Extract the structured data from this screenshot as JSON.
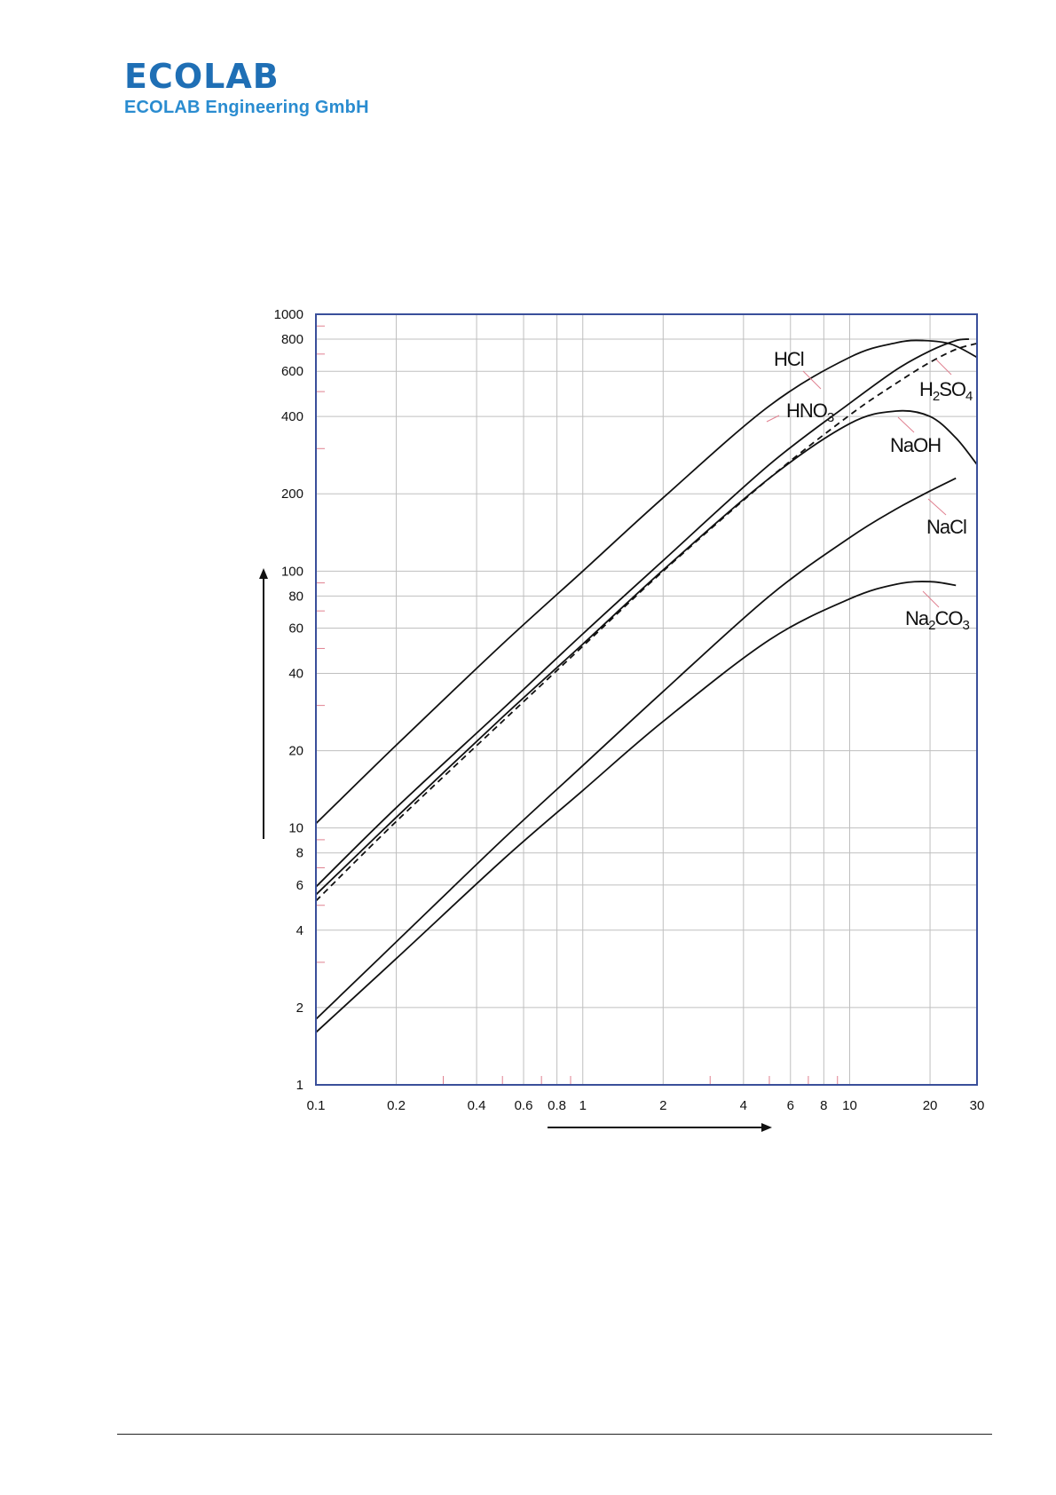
{
  "header": {
    "logo_text": "ECOLAB",
    "company": "ECOLAB Engineering GmbH"
  },
  "colors": {
    "brand": "#1f6fb5",
    "axis_frame": "#3a4f9a",
    "grid": "#bfbfbf",
    "minor_tick": "#e08090",
    "curve": "#111111"
  },
  "chart_data": {
    "type": "line",
    "xscale": "log",
    "yscale": "log",
    "xlim": [
      0.1,
      30
    ],
    "ylim": [
      1,
      1000
    ],
    "grid": true,
    "x_ticks": [
      0.1,
      0.2,
      0.4,
      0.6,
      0.8,
      1,
      2,
      4,
      6,
      8,
      10,
      20,
      30
    ],
    "y_ticks": [
      1,
      2,
      4,
      6,
      8,
      10,
      20,
      40,
      60,
      80,
      100,
      200,
      400,
      600,
      800,
      1000
    ],
    "series": [
      {
        "name": "HCl",
        "style": "solid",
        "x": [
          0.1,
          0.2,
          0.5,
          1,
          2,
          5,
          10,
          15,
          19,
          24,
          30
        ],
        "y": [
          10.4,
          21,
          52,
          100,
          193,
          440,
          680,
          775,
          790,
          765,
          680
        ]
      },
      {
        "name": "HNO3",
        "style": "solid",
        "x": [
          0.1,
          0.2,
          0.5,
          1,
          2,
          5,
          10,
          15,
          20,
          25,
          28
        ],
        "y": [
          5.9,
          12,
          29,
          57,
          110,
          260,
          450,
          610,
          720,
          790,
          800
        ]
      },
      {
        "name": "H2SO4",
        "style": "dashed",
        "x": [
          0.1,
          0.2,
          0.5,
          1,
          2,
          5,
          10,
          15,
          20,
          25,
          30
        ],
        "y": [
          5.2,
          10.6,
          26,
          51,
          100,
          230,
          405,
          540,
          650,
          730,
          770
        ]
      },
      {
        "name": "NaOH",
        "style": "solid",
        "x": [
          0.1,
          0.2,
          0.5,
          1,
          2,
          5,
          10,
          15,
          20,
          25,
          30
        ],
        "y": [
          5.5,
          11,
          27,
          52,
          101,
          230,
          375,
          420,
          400,
          330,
          260
        ]
      },
      {
        "name": "NaCl",
        "style": "solid",
        "x": [
          0.1,
          0.2,
          0.5,
          1,
          2,
          5,
          10,
          15,
          20,
          25
        ],
        "y": [
          1.8,
          3.6,
          9,
          17.5,
          34,
          80,
          135,
          175,
          205,
          230
        ]
      },
      {
        "name": "Na2CO3",
        "style": "solid",
        "x": [
          0.1,
          0.2,
          0.5,
          1,
          2,
          5,
          10,
          15,
          20,
          25
        ],
        "y": [
          1.6,
          3.1,
          7.5,
          14,
          26,
          54,
          78,
          89,
          91,
          88
        ]
      }
    ],
    "labels": [
      {
        "series": "HCl",
        "parts": [
          {
            "t": "HCl"
          }
        ]
      },
      {
        "series": "HNO3",
        "parts": [
          {
            "t": "HNO"
          },
          {
            "t": "3",
            "sub": true
          }
        ]
      },
      {
        "series": "H2SO4",
        "parts": [
          {
            "t": "H"
          },
          {
            "t": "2",
            "sub": true
          },
          {
            "t": "SO"
          },
          {
            "t": "4",
            "sub": true
          }
        ]
      },
      {
        "series": "NaOH",
        "parts": [
          {
            "t": "NaOH"
          }
        ]
      },
      {
        "series": "NaCl",
        "parts": [
          {
            "t": "NaCl"
          }
        ]
      },
      {
        "series": "Na2CO3",
        "parts": [
          {
            "t": "Na"
          },
          {
            "t": "2",
            "sub": true
          },
          {
            "t": "CO"
          },
          {
            "t": "3",
            "sub": true
          }
        ]
      }
    ]
  }
}
